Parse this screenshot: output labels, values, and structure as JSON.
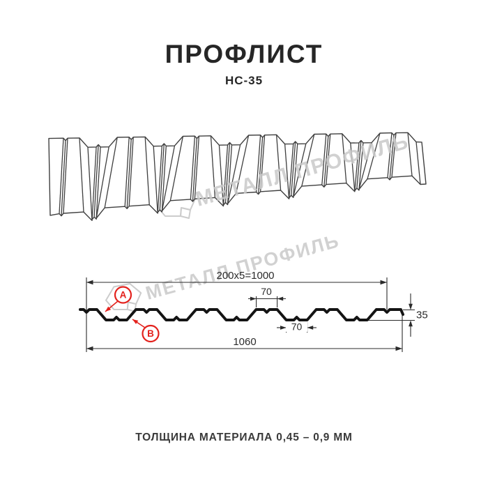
{
  "header": {
    "title": "ПРОФЛИСТ",
    "subtitle": "НС-35"
  },
  "footer": {
    "text": "ТОЛЩИНА МАТЕРИАЛА 0,45 – 0,9 ММ"
  },
  "watermark": {
    "text": "МЕТАЛЛ ПРОФИЛЬ",
    "color": "#c9c9c9"
  },
  "section": {
    "dims": {
      "pitch": "200x5=1000",
      "top_flange": "70",
      "bottom_flange": "70",
      "height": "35",
      "total_width": "1060"
    },
    "callouts": [
      {
        "label": "A"
      },
      {
        "label": "B"
      }
    ],
    "accent": "#e3211c",
    "line_color": "#2b2b2b",
    "profile_color": "#141414"
  }
}
